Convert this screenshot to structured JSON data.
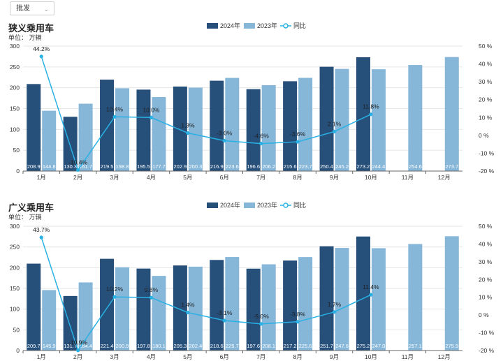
{
  "filter": {
    "selected": "批发",
    "icon": "chevron-down-icon"
  },
  "colors": {
    "bar2024": "#264f7a",
    "bar2023": "#86b6d8",
    "line": "#28b1e4",
    "grid": "#e6e6e6"
  },
  "charts": [
    {
      "title": "狭义乘用车",
      "unit": "单位： 万辆",
      "legend": [
        "2024年",
        "2023年",
        "同比"
      ],
      "chart_data": {
        "type": "bar",
        "categories": [
          "1月",
          "2月",
          "3月",
          "4月",
          "5月",
          "6月",
          "7月",
          "8月",
          "9月",
          "10月",
          "11月",
          "12月"
        ],
        "series": [
          {
            "name": "2024年",
            "values": [
              208.9,
              130.3,
              219.5,
              195.5,
              202.9,
              216.9,
              196.6,
              215.6,
              250.4,
              273.2,
              null,
              null
            ],
            "labels": [
              "208.9",
              "130.3",
              "219.5",
              "195.5",
              "202.9",
              "216.9",
              "196.6",
              "215.6",
              "250.4",
              "273.2",
              "",
              ""
            ]
          },
          {
            "name": "2023年",
            "values": [
              144.8,
              161.7,
              198.8,
              177.7,
              200.3,
              223.6,
              206.2,
              223.7,
              245.2,
              244.4,
              254.6,
              273.7
            ],
            "labels": [
              "144.8",
              "161.7",
              "198.8",
              "177.7",
              "200.3",
              "223.6",
              "206.2",
              "223.7",
              "245.2",
              "244.4",
              "254.6",
              "273.7"
            ]
          },
          {
            "name": "同比",
            "type": "line",
            "values": [
              44.2,
              -19.4,
              10.4,
              10.0,
              1.3,
              -3.0,
              -4.6,
              -3.6,
              2.1,
              11.8,
              null,
              null
            ],
            "labels": [
              "44.2%",
              "-19.4%",
              "10.4%",
              "10.0%",
              "1.3%",
              "-3.0%",
              "-4.6%",
              "-3.6%",
              "2.1%",
              "11.8%",
              "",
              ""
            ]
          }
        ],
        "ylim": [
          0,
          300
        ],
        "yticks": [
          "0",
          "50",
          "100",
          "150",
          "200",
          "250",
          "300"
        ],
        "y2lim": [
          -20,
          50
        ],
        "y2ticks": [
          "-20 %",
          "-10 %",
          "0 %",
          "10 %",
          "20 %",
          "30 %",
          "40 %",
          "50 %"
        ],
        "grid": true,
        "legend_position": "top-right"
      }
    },
    {
      "title": "广义乘用车",
      "unit": "单位： 万辆",
      "legend": [
        "2024年",
        "2023年",
        "同比"
      ],
      "chart_data": {
        "type": "bar",
        "categories": [
          "1月",
          "2月",
          "3月",
          "4月",
          "5月",
          "6月",
          "7月",
          "8月",
          "9月",
          "10月",
          "11月",
          "12月"
        ],
        "series": [
          {
            "name": "2024年",
            "values": [
              209.7,
              131.7,
              221.4,
              197.8,
              205.3,
              218.6,
              197.6,
              217.2,
              251.7,
              275.2,
              null,
              null
            ],
            "labels": [
              "209.7",
              "131.7",
              "221.4",
              "197.8",
              "205.3",
              "218.6",
              "197.6",
              "217.2",
              "251.7",
              "275.2",
              "",
              ""
            ]
          },
          {
            "name": "2023年",
            "values": [
              145.9,
              164.4,
              200.9,
              180.1,
              202.4,
              225.7,
              208.1,
              225.6,
              247.6,
              247.0,
              257.1,
              275.9
            ],
            "labels": [
              "145.9",
              "164.4",
              "200.9",
              "180.1",
              "202.4",
              "225.7",
              "208.1",
              "225.6",
              "247.6",
              "247.0",
              "257.1",
              "275.9"
            ]
          },
          {
            "name": "同比",
            "type": "line",
            "values": [
              43.7,
              -19.9,
              10.2,
              9.8,
              1.4,
              -3.1,
              -5.0,
              -3.8,
              1.7,
              11.4,
              null,
              null
            ],
            "labels": [
              "43.7%",
              "-19.9%",
              "10.2%",
              "9.8%",
              "1.4%",
              "-3.1%",
              "-5.0%",
              "-3.8%",
              "1.7%",
              "11.4%",
              "",
              ""
            ]
          }
        ],
        "ylim": [
          0,
          300
        ],
        "yticks": [
          "0",
          "50",
          "100",
          "150",
          "200",
          "250",
          "300"
        ],
        "y2lim": [
          -20,
          50
        ],
        "y2ticks": [
          "-20 %",
          "-10 %",
          "0 %",
          "10 %",
          "20 %",
          "30 %",
          "40 %",
          "50 %"
        ],
        "grid": true,
        "legend_position": "top-right"
      }
    }
  ]
}
